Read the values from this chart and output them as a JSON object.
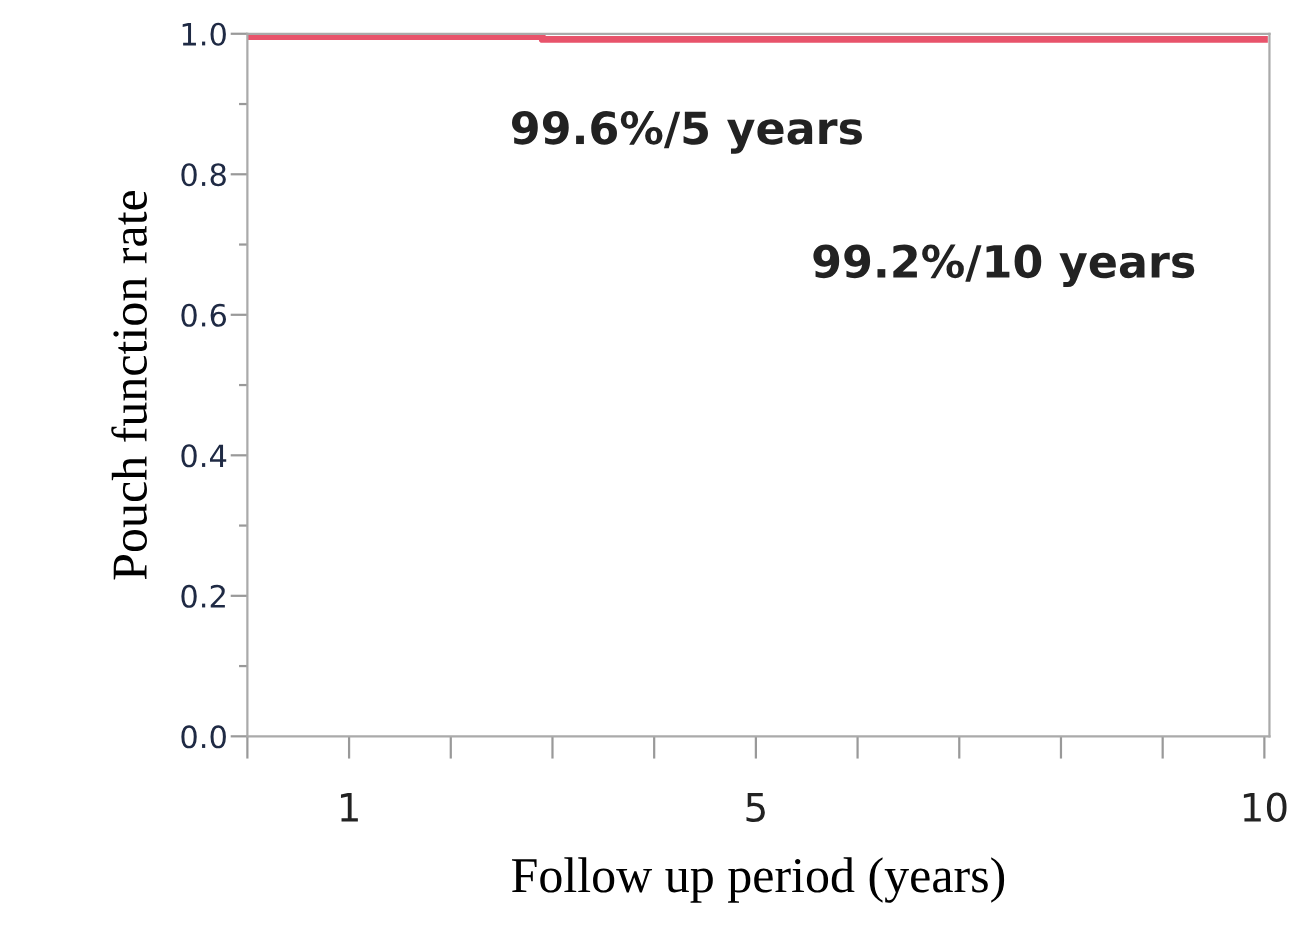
{
  "chart_data": {
    "type": "step",
    "xlabel": "Follow up period (years)",
    "ylabel": "Pouch function rate",
    "x": [
      0,
      2.9,
      10
    ],
    "series": [
      {
        "color": "#e8536b",
        "values": [
          0.996,
          0.992,
          0.992
        ]
      }
    ],
    "xlim": [
      0,
      10.05
    ],
    "xticks": [
      {
        "value": 0,
        "label": null
      },
      1,
      {
        "value": 2,
        "label": null
      },
      {
        "value": 3,
        "label": null
      },
      {
        "value": 4,
        "label": null
      },
      5,
      {
        "value": 6,
        "label": null
      },
      {
        "value": 7,
        "label": null
      },
      {
        "value": 8,
        "label": null
      },
      {
        "value": 9,
        "label": null
      },
      10
    ],
    "ylim": [
      0,
      1.0
    ],
    "yticks": [
      {
        "value": 0,
        "label": "0.0"
      },
      {
        "value": 0.1,
        "label": null
      },
      {
        "value": 0.2,
        "label": "0.2"
      },
      {
        "value": 0.3,
        "label": null
      },
      {
        "value": 0.4,
        "label": "0.4"
      },
      {
        "value": 0.5,
        "label": null
      },
      {
        "value": 0.6,
        "label": "0.6"
      },
      {
        "value": 0.7,
        "label": null
      },
      {
        "value": 0.8,
        "label": "0.8"
      },
      {
        "value": 0.9,
        "label": null
      },
      {
        "value": 1.0,
        "label": "1.0"
      }
    ],
    "annotations": [
      "99.6%/5 years",
      "99.2%/10 years"
    ],
    "grid": false,
    "legend": false,
    "marker": "none",
    "line_style": "solid"
  }
}
